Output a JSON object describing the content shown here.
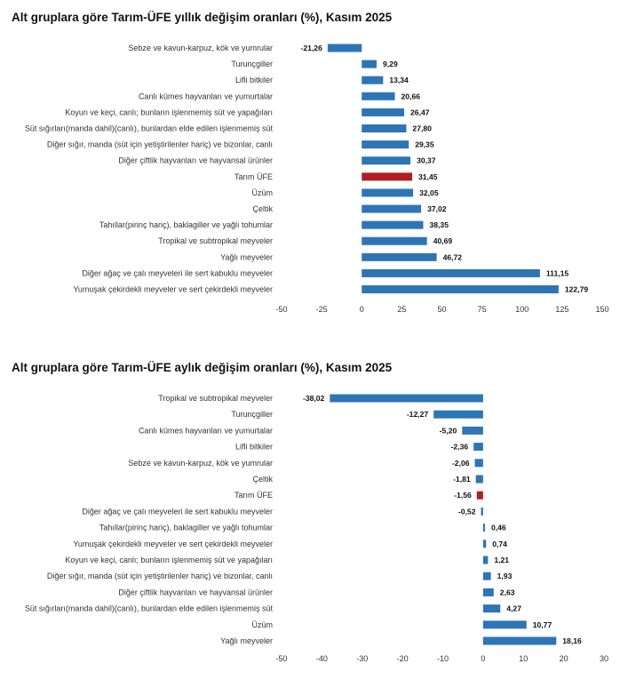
{
  "chart_data": [
    {
      "type": "bar",
      "orientation": "horizontal",
      "title": "Alt gruplara göre Tarım-ÜFE yıllık değişim oranları (%), Kasım 2025",
      "categories": [
        "Sebze ve kavun-karpuz, kök ve yumrular",
        "Turunçgiller",
        "Lifli bitkiler",
        "Canlı kümes hayvanları ve yumurtalar",
        "Koyun ve keçi, canlı; bunların işlenmemiş süt ve yapağıları",
        "Süt sığırları(manda dahil)(canlı), bunlardan elde edilen işlenmemiş süt",
        "Diğer sığır, manda (süt için yetiştirilenler hariç) ve bizonlar, canlı",
        "Diğer çiftlik hayvanları ve hayvansal ürünler",
        "Tarım ÜFE",
        "Üzüm",
        "Çeltik",
        "Tahıllar(pirinç hariç), baklagiller ve yağlı tohumlar",
        "Tropikal ve subtropikal meyveler",
        "Yağlı meyveler",
        "Diğer ağaç ve çalı meyveleri ile sert kabuklu meyveler",
        "Yumuşak çekirdekli meyveler ve sert çekirdekli meyveler"
      ],
      "values": [
        -21.26,
        9.29,
        13.34,
        20.66,
        26.47,
        27.8,
        29.35,
        30.37,
        31.45,
        32.05,
        37.02,
        38.35,
        40.69,
        46.72,
        111.15,
        122.79
      ],
      "labels": [
        "-21,26",
        "9,29",
        "13,34",
        "20,66",
        "26,47",
        "27,80",
        "29,35",
        "30,37",
        "31,45",
        "32,05",
        "37,02",
        "38,35",
        "40,69",
        "46,72",
        "111,15",
        "122,79"
      ],
      "highlight": "Tarım ÜFE",
      "xlim": [
        -50,
        150
      ],
      "xticks": [
        -50,
        -25,
        0,
        25,
        50,
        75,
        100,
        125,
        150
      ],
      "xtick_labels": [
        "-50",
        "-25",
        "0",
        "25",
        "50",
        "75",
        "100",
        "125",
        "150"
      ],
      "bar_color": "#2e75b6",
      "highlight_color": "#b01e23"
    },
    {
      "type": "bar",
      "orientation": "horizontal",
      "title": "Alt gruplara göre Tarım-ÜFE aylık değişim oranları (%), Kasım 2025",
      "categories": [
        "Tropikal ve subtropikal meyveler",
        "Turunçgiller",
        "Canlı kümes hayvanları ve yumurtalar",
        "Lifli bitkiler",
        "Sebze ve kavun-karpuz, kök ve yumrular",
        "Çeltik",
        "Tarım ÜFE",
        "Diğer ağaç ve çalı meyveleri ile sert kabuklu meyveler",
        "Tahıllar(pirinç hariç), baklagiller ve yağlı tohumlar",
        "Yumuşak çekirdekli meyveler ve sert çekirdekli meyveler",
        "Koyun ve keçi, canlı; bunların işlenmemiş süt ve yapağıları",
        "Diğer sığır, manda (süt için yetiştirilenler hariç) ve bizonlar, canlı",
        "Diğer çiftlik hayvanları ve hayvansal ürünler",
        "Süt sığırları(manda dahil)(canlı), bunlardan elde edilen işlenmemiş süt",
        "Üzüm",
        "Yağlı meyveler"
      ],
      "values": [
        -38.02,
        -12.27,
        -5.2,
        -2.36,
        -2.06,
        -1.81,
        -1.56,
        -0.52,
        0.46,
        0.74,
        1.21,
        1.93,
        2.63,
        4.27,
        10.77,
        18.16
      ],
      "labels": [
        "-38,02",
        "-12,27",
        "-5,20",
        "-2,36",
        "-2,06",
        "-1,81",
        "-1,56",
        "-0,52",
        "0,46",
        "0,74",
        "1,21",
        "1,93",
        "2,63",
        "4,27",
        "10,77",
        "18,16"
      ],
      "highlight": "Tarım ÜFE",
      "xlim": [
        -50,
        30
      ],
      "xticks": [
        -50,
        -40,
        -30,
        -20,
        -10,
        0,
        10,
        20,
        30
      ],
      "xtick_labels": [
        "-50",
        "-40",
        "-30",
        "-20",
        "-10",
        "0",
        "10",
        "20",
        "30"
      ],
      "bar_color": "#2e75b6",
      "highlight_color": "#b01e23"
    }
  ]
}
